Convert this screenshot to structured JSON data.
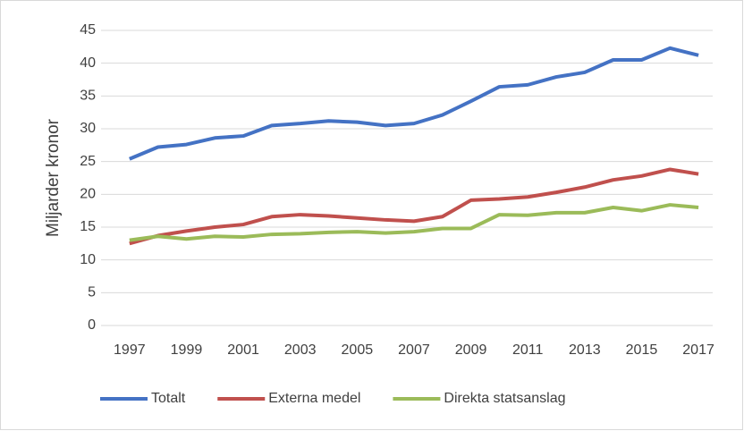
{
  "chart_data": {
    "type": "line",
    "ylabel": "Miljarder kronor",
    "x": [
      1997,
      1998,
      1999,
      2000,
      2001,
      2002,
      2003,
      2004,
      2005,
      2006,
      2007,
      2008,
      2009,
      2010,
      2011,
      2012,
      2013,
      2014,
      2015,
      2016,
      2017
    ],
    "series": [
      {
        "name": "Totalt",
        "color": "#4472c4",
        "values": [
          25.4,
          27.2,
          27.6,
          28.6,
          28.9,
          30.5,
          30.8,
          31.2,
          31.0,
          30.5,
          30.8,
          32.1,
          34.2,
          36.4,
          36.7,
          37.9,
          38.6,
          40.5,
          40.5,
          42.3,
          41.2
        ]
      },
      {
        "name": "Externa medel",
        "color": "#c0504d",
        "values": [
          12.5,
          13.7,
          14.4,
          15.0,
          15.4,
          16.6,
          16.9,
          16.7,
          16.4,
          16.1,
          15.9,
          16.6,
          19.1,
          19.3,
          19.6,
          20.3,
          21.1,
          22.2,
          22.8,
          23.8,
          23.1
        ]
      },
      {
        "name": "Direkta statsanslag",
        "color": "#9bbb59",
        "values": [
          13.0,
          13.6,
          13.2,
          13.6,
          13.5,
          13.9,
          14.0,
          14.2,
          14.3,
          14.1,
          14.3,
          14.8,
          14.8,
          16.9,
          16.8,
          17.2,
          17.2,
          18.0,
          17.5,
          18.4,
          18.0
        ]
      }
    ],
    "xlim": [
      1996,
      2017.5
    ],
    "xticks": [
      1997,
      1999,
      2001,
      2003,
      2005,
      2007,
      2009,
      2011,
      2013,
      2015,
      2017
    ],
    "ylim": [
      0,
      45
    ],
    "yticks": [
      0,
      5,
      10,
      15,
      20,
      25,
      30,
      35,
      40,
      45
    ],
    "grid": true,
    "legend": "bottom"
  }
}
